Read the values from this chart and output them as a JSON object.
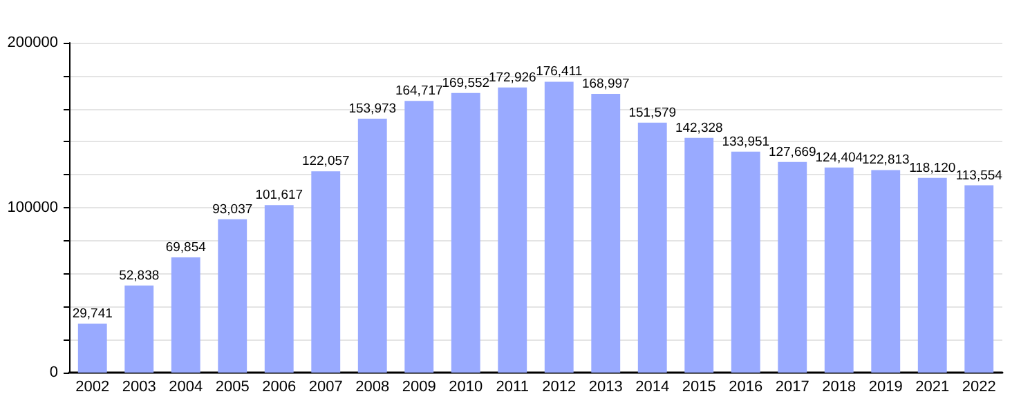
{
  "chart_data": {
    "type": "bar",
    "categories": [
      "2002",
      "2003",
      "2004",
      "2005",
      "2006",
      "2007",
      "2008",
      "2009",
      "2010",
      "2011",
      "2012",
      "2013",
      "2014",
      "2015",
      "2016",
      "2017",
      "2018",
      "2019",
      "2021",
      "2022"
    ],
    "values": [
      29741,
      52838,
      69854,
      93037,
      101617,
      122057,
      153973,
      164717,
      169552,
      172926,
      176411,
      168997,
      151579,
      142328,
      133951,
      127669,
      124404,
      122813,
      118120,
      113554
    ],
    "value_labels": [
      "29,741",
      "52,838",
      "69,854",
      "93,037",
      "101,617",
      "122,057",
      "153,973",
      "164,717",
      "169,552",
      "172,926",
      "176,411",
      "168,997",
      "151,579",
      "142,328",
      "133,951",
      "127,669",
      "124,404",
      "122,813",
      "118,120",
      "113,554"
    ],
    "color": "#99aaff",
    "ylim": [
      0,
      200000
    ],
    "yticks": [
      0,
      {
        "value": 20000,
        "label": null
      },
      {
        "value": 40000,
        "label": null
      },
      {
        "value": 60000,
        "label": null
      },
      {
        "value": 80000,
        "label": null
      },
      100000,
      {
        "value": 120000,
        "label": null
      },
      {
        "value": 140000,
        "label": null
      },
      {
        "value": 160000,
        "label": null
      },
      {
        "value": 180000,
        "label": null
      },
      200000
    ],
    "grid": "y"
  }
}
